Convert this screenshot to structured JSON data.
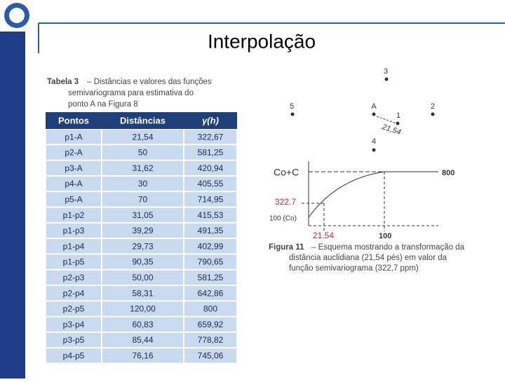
{
  "header": {
    "title": "Interpolação"
  },
  "table": {
    "caption_label": "Tabela 3",
    "caption": [
      "– Distâncias e valores das funções",
      "semivariograma para estimativa do",
      "ponto A na Figura 8"
    ],
    "columns": [
      "Pontos",
      "Distâncias",
      "γ(h)"
    ],
    "rows": [
      [
        "p1-A",
        "21,54",
        "322,67"
      ],
      [
        "p2-A",
        "50",
        "581,25"
      ],
      [
        "p3-A",
        "31,62",
        "420,94"
      ],
      [
        "p4-A",
        "30",
        "405,55"
      ],
      [
        "p5-A",
        "70",
        "714,95"
      ],
      [
        "p1-p2",
        "31,05",
        "415,53"
      ],
      [
        "p1-p3",
        "39,29",
        "491,35"
      ],
      [
        "p1-p4",
        "29,73",
        "402,99"
      ],
      [
        "p1-p5",
        "90,35",
        "790,65"
      ],
      [
        "p2-p3",
        "50,00",
        "581,25"
      ],
      [
        "p2-p4",
        "58,31",
        "642,86"
      ],
      [
        "p2-p5",
        "120,00",
        "800"
      ],
      [
        "p3-p4",
        "60,83",
        "659,92"
      ],
      [
        "p3-p5",
        "85,44",
        "778,82"
      ],
      [
        "p4-p5",
        "76,16",
        "745,06"
      ]
    ]
  },
  "figure": {
    "points": [
      "3",
      "5",
      "A",
      "1",
      "2",
      "4"
    ],
    "distance_label": "21,54",
    "graph": {
      "sill_label": "Co+C",
      "sill_value": "800",
      "gamma_value": "322.7",
      "nugget_label": "100 (Co)",
      "distance_value": "21.54",
      "range_value": "100"
    },
    "caption_label": "Figura 11",
    "caption": [
      "– Esquema mostrando a transformação da",
      "distância auclidiana (21,54 pés) em valor da",
      "função semivariograma (322,7 ppm)"
    ]
  }
}
